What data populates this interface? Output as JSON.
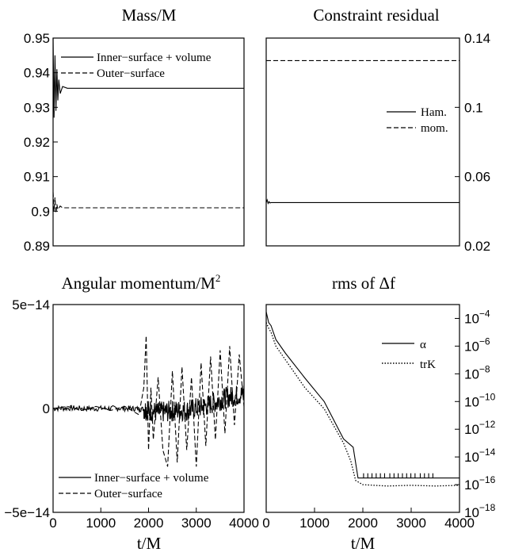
{
  "chart_data": [
    {
      "type": "line",
      "title": "Mass/M",
      "xlabel": "",
      "ylabel": "",
      "ylim": [
        0.89,
        0.95
      ],
      "xlim": [
        0,
        4000
      ],
      "y_ticks": [
        "0.95",
        "0.94",
        "0.93",
        "0.92",
        "0.91",
        "0.9",
        "0.89"
      ],
      "legend_position": "top-right",
      "series": [
        {
          "name": "Inner−surface + volume",
          "style": "solid",
          "x": [
            0,
            20,
            40,
            60,
            80,
            100,
            120,
            150,
            200,
            300,
            400,
            1000,
            2000,
            3000,
            4000
          ],
          "y": [
            0.95,
            0.927,
            0.945,
            0.929,
            0.941,
            0.932,
            0.938,
            0.934,
            0.936,
            0.9355,
            0.9355,
            0.9355,
            0.9355,
            0.9355,
            0.9355
          ]
        },
        {
          "name": "Outer−surface",
          "style": "dashed",
          "x": [
            0,
            20,
            40,
            60,
            80,
            100,
            150,
            200,
            400,
            1000,
            2000,
            3000,
            4000
          ],
          "y": [
            0.9055,
            0.9,
            0.904,
            0.8995,
            0.902,
            0.9005,
            0.9015,
            0.901,
            0.901,
            0.901,
            0.901,
            0.901,
            0.901
          ]
        }
      ]
    },
    {
      "type": "line",
      "title": "Constraint residual",
      "xlabel": "",
      "ylabel": "",
      "ylim": [
        0.02,
        0.14
      ],
      "xlim": [
        0,
        4000
      ],
      "y_ticks": [
        "0.14",
        "0.1",
        "0.06",
        "0.02"
      ],
      "y_axis_side": "right",
      "legend_position": "right",
      "series": [
        {
          "name": "Ham.",
          "style": "solid",
          "x": [
            0,
            20,
            40,
            60,
            80,
            100,
            200,
            1000,
            2000,
            3000,
            4000
          ],
          "y": [
            0.045,
            0.0465,
            0.0445,
            0.0455,
            0.0448,
            0.045,
            0.045,
            0.045,
            0.045,
            0.045,
            0.045
          ]
        },
        {
          "name": "mom.",
          "style": "dashed",
          "x": [
            0,
            4000
          ],
          "y": [
            0.127,
            0.127
          ]
        }
      ]
    },
    {
      "type": "line",
      "title": "Angular momentum/M",
      "title_superscript": "2",
      "xlabel": "t/M",
      "ylabel": "",
      "ylim": [
        -5e-14,
        5e-14
      ],
      "xlim": [
        0,
        4000
      ],
      "x_ticks": [
        "0",
        "1000",
        "2000",
        "3000",
        "4000"
      ],
      "y_ticks": [
        "5e−14",
        "0",
        "−5e−14"
      ],
      "legend_position": "bottom",
      "series": [
        {
          "name": "Inner−surface + volume",
          "style": "solid",
          "band": 1.3e-15,
          "x": [
            0,
            400,
            800,
            1200,
            1600,
            1900,
            2000,
            2200,
            2400,
            2600,
            2800,
            3000,
            3200,
            3400,
            3600,
            3800,
            4000
          ],
          "y": [
            0,
            2e-16,
            -1e-16,
            1e-16,
            0,
            -3e-16,
            -1e-15,
            -2e-15,
            -1.5e-15,
            -1e-15,
            -1e-15,
            1e-16,
            1.2e-15,
            3e-15,
            5e-15,
            6e-15,
            7e-15
          ]
        },
        {
          "name": "Outer−surface",
          "style": "dashed",
          "x": [
            0,
            300,
            600,
            900,
            1200,
            1500,
            1800,
            1900,
            1950,
            2000,
            2050,
            2100,
            2200,
            2300,
            2400,
            2500,
            2600,
            2700,
            2800,
            2900,
            3000,
            3100,
            3200,
            3300,
            3400,
            3500,
            3600,
            3700,
            3800,
            3900,
            4000
          ],
          "y": [
            0,
            1e-15,
            -1e-15,
            1e-15,
            -1e-15,
            1e-15,
            -3e-15,
            1e-14,
            3.5e-14,
            -2e-14,
            1e-14,
            -1.5e-14,
            1.5e-14,
            -2e-14,
            -2.8e-14,
            1.8e-14,
            -2.6e-14,
            2e-14,
            -2e-14,
            1.5e-14,
            -2.8e-14,
            2.2e-14,
            -1.8e-14,
            2.5e-14,
            -1.5e-14,
            2.8e-14,
            -1.2e-14,
            3e-14,
            -8e-15,
            2.6e-14,
            1e-15
          ]
        }
      ]
    },
    {
      "type": "line",
      "title": "rms of Δf",
      "xlabel": "t/M",
      "ylabel": "",
      "yscale": "log",
      "ylim_exponent": [
        -18,
        -3
      ],
      "xlim": [
        0,
        4000
      ],
      "x_ticks": [
        "0",
        "1000",
        "2000",
        "3000",
        "4000"
      ],
      "y_tick_exponents": [
        "−4",
        "−6",
        "−8",
        "−10",
        "−12",
        "−14",
        "−16",
        "−18"
      ],
      "y_tick_base": "10",
      "y_axis_side": "right",
      "legend_position": "top-right",
      "series": [
        {
          "name": "α",
          "style": "solid",
          "x": [
            0,
            50,
            100,
            200,
            400,
            800,
            1200,
            1600,
            1800,
            1900,
            2000,
            2500,
            3000,
            3500,
            4000
          ],
          "y": [
            0.0003,
            5e-05,
            3e-05,
            3e-06,
            3e-07,
            5e-09,
            1e-10,
            2e-13,
            5e-14,
            3e-16,
            3e-16,
            3e-16,
            3e-16,
            3e-16,
            3e-16
          ]
        },
        {
          "name": "trK",
          "style": "dotted",
          "x": [
            0,
            50,
            100,
            200,
            400,
            800,
            1200,
            1600,
            1750,
            1850,
            2000,
            2500,
            3000,
            3500,
            4000
          ],
          "y": [
            5e-05,
            2e-05,
            1e-05,
            1e-06,
            1e-07,
            1e-09,
            3e-11,
            1e-13,
            5e-15,
            2e-16,
            1e-16,
            8e-17,
            9e-17,
            8e-17,
            9e-17
          ]
        }
      ]
    }
  ]
}
